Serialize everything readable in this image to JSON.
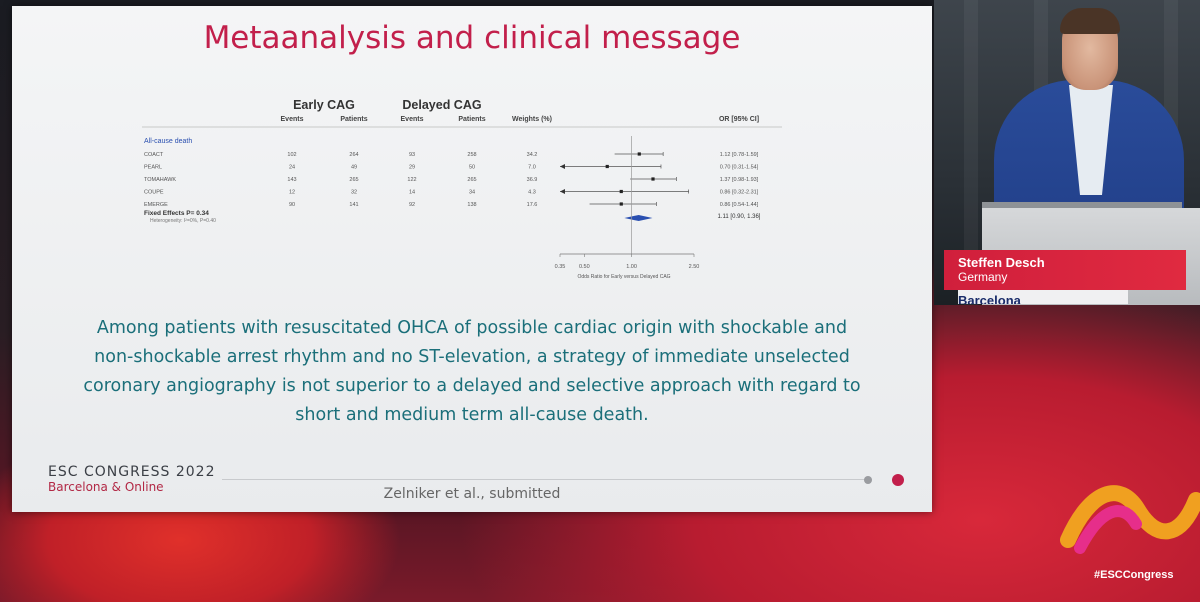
{
  "slide": {
    "title": "Metaanalysis and clinical message",
    "table": {
      "group_early": "Early CAG",
      "group_delayed": "Delayed CAG",
      "col_events": "Events",
      "col_patients": "Patients",
      "col_weights": "Weights (%)",
      "col_or": "OR [95% CI]",
      "section_label": "All-cause death",
      "rows": [
        {
          "study": "COACT",
          "early_events": "102",
          "early_patients": "264",
          "delayed_events": "93",
          "delayed_patients": "258",
          "weight": "34.2",
          "or_text": "1.12 [0.78-1.59]",
          "or": 1.12,
          "lo": 0.78,
          "hi": 1.59
        },
        {
          "study": "PEARL",
          "early_events": "24",
          "early_patients": "49",
          "delayed_events": "29",
          "delayed_patients": "50",
          "weight": "7.0",
          "or_text": "0.70 [0.31-1.54]",
          "or": 0.7,
          "lo": 0.31,
          "hi": 1.54
        },
        {
          "study": "TOMAHAWK",
          "early_events": "143",
          "early_patients": "265",
          "delayed_events": "122",
          "delayed_patients": "265",
          "weight": "36.9",
          "or_text": "1.37 [0.98-1.93]",
          "or": 1.37,
          "lo": 0.98,
          "hi": 1.93
        },
        {
          "study": "COUPE",
          "early_events": "12",
          "early_patients": "32",
          "delayed_events": "14",
          "delayed_patients": "34",
          "weight": "4.3",
          "or_text": "0.86 [0.32-2.31]",
          "or": 0.86,
          "lo": 0.32,
          "hi": 2.31
        },
        {
          "study": "EMERGE",
          "early_events": "90",
          "early_patients": "141",
          "delayed_events": "92",
          "delayed_patients": "138",
          "weight": "17.6",
          "or_text": "0.86 [0.54-1.44]",
          "or": 0.86,
          "lo": 0.54,
          "hi": 1.44
        }
      ],
      "fixed_label": "Fixed Effects P= 0.34",
      "fixed_sub": "Heterogeneity: I²=0%, P=0.40",
      "fixed_or_text": "1.11 [0.90, 1.36]",
      "fixed": {
        "or": 1.11,
        "lo": 0.9,
        "hi": 1.36
      },
      "axis_ticks": [
        "0.35",
        "0.50",
        "1.00",
        "2.50"
      ],
      "axis_tick_values": [
        0.35,
        0.5,
        1.0,
        2.5
      ],
      "axis_label": "Odds Ratio for Early versus Delayed CAG"
    },
    "message": "Among patients with resuscitated OHCA of possible cardiac origin with shockable and non-shockable arrest rhythm and no ST-elevation, a strategy of immediate unselected coronary angiography is not superior to a delayed and selective approach with regard to short and medium term all-cause death.",
    "esc_title": "ESC CONGRESS 2022",
    "esc_sub": "Barcelona & Online",
    "citation": "Zelniker et al., submitted"
  },
  "speaker": {
    "name": "Steffen Desch",
    "country": "Germany",
    "backdrop_text": "Barcelona"
  },
  "hashtag": "#ESCCongress",
  "colors": {
    "title": "#c21f4b",
    "message": "#1b6f7a",
    "diamond": "#2a4fb0",
    "name_box": "#d01f3c"
  }
}
